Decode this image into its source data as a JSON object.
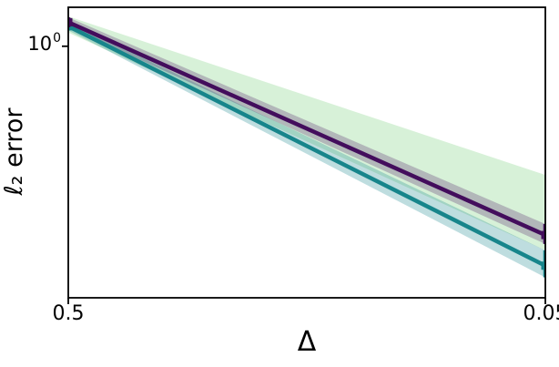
{
  "chart_data": {
    "type": "line",
    "title": "",
    "xlabel": "Δ",
    "ylabel": "ℓ₂ error",
    "x_scale": "log",
    "y_scale": "log",
    "x_axis_reversed": true,
    "xlim": [
      0.5,
      0.05
    ],
    "ylim": [
      1.38,
      0.125
    ],
    "grid": false,
    "legend": "none",
    "x_ticks": [
      {
        "value": 0.5,
        "label": "0.5"
      },
      {
        "value": 0.05,
        "label": "0.05"
      }
    ],
    "y_ticks": [
      {
        "value": 1.0,
        "base": "10",
        "exp": "0"
      }
    ],
    "series": [
      {
        "name": "green",
        "color": "#5ec962",
        "x": [
          0.5,
          0.05
        ],
        "y": null,
        "band": {
          "upper": [
            1.28,
            0.345
          ],
          "lower": [
            1.12,
            0.185
          ],
          "color": "#5ec962",
          "opacity": 0.25
        }
      },
      {
        "name": "teal",
        "color": "#17858b",
        "x": [
          0.5,
          0.05
        ],
        "y": [
          1.18,
          0.163
        ],
        "band": {
          "upper": [
            1.22,
            0.185
          ],
          "lower": [
            1.14,
            0.148
          ],
          "color": "#17858b",
          "opacity": 0.28
        }
      },
      {
        "name": "purple",
        "color": "#430d5c",
        "x": [
          0.5,
          0.05
        ],
        "y": [
          1.22,
          0.21
        ],
        "band": {
          "upper": [
            1.27,
            0.23
          ],
          "lower": [
            1.17,
            0.195
          ],
          "color": "#430d5c",
          "opacity": 0.25
        }
      }
    ]
  }
}
